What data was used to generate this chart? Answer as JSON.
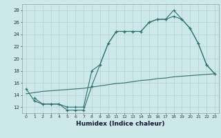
{
  "title": "",
  "xlabel": "Humidex (Indice chaleur)",
  "xlim": [
    -0.5,
    23.5
  ],
  "ylim": [
    11,
    29
  ],
  "yticks": [
    12,
    14,
    16,
    18,
    20,
    22,
    24,
    26,
    28
  ],
  "xticks": [
    0,
    1,
    2,
    3,
    4,
    5,
    6,
    7,
    8,
    9,
    10,
    11,
    12,
    13,
    14,
    15,
    16,
    17,
    18,
    19,
    20,
    21,
    22,
    23
  ],
  "bg_color": "#cce8e8",
  "line_color": "#2d7070",
  "grid_color": "#b8d4d4",
  "line1_x": [
    0,
    1,
    2,
    3,
    4,
    5,
    6,
    7,
    8,
    9,
    10,
    11,
    12,
    13,
    14,
    15,
    16,
    17,
    18,
    19,
    20,
    21,
    22,
    23
  ],
  "line1_y": [
    15.0,
    13.0,
    12.5,
    12.5,
    12.5,
    11.5,
    11.5,
    11.5,
    15.5,
    19.0,
    22.5,
    24.5,
    24.5,
    24.5,
    24.5,
    26.0,
    26.5,
    26.5,
    28.0,
    26.5,
    25.0,
    22.5,
    19.0,
    17.5
  ],
  "line2_x": [
    0,
    1,
    2,
    3,
    4,
    5,
    6,
    7,
    8,
    9,
    10,
    11,
    12,
    13,
    14,
    15,
    16,
    17,
    18,
    19,
    20,
    21,
    22,
    23
  ],
  "line2_y": [
    14.2,
    14.4,
    14.6,
    14.7,
    14.8,
    14.9,
    15.0,
    15.1,
    15.3,
    15.5,
    15.7,
    15.9,
    16.0,
    16.2,
    16.4,
    16.5,
    16.7,
    16.8,
    17.0,
    17.1,
    17.2,
    17.3,
    17.4,
    17.5
  ],
  "line3_x": [
    1,
    2,
    3,
    4,
    5,
    6,
    7,
    8,
    9,
    10,
    11,
    12,
    13,
    14,
    15,
    16,
    17,
    18,
    19,
    20,
    21,
    22,
    23
  ],
  "line3_y": [
    13.5,
    12.5,
    12.5,
    12.5,
    12.0,
    12.0,
    12.0,
    18.0,
    19.0,
    22.5,
    24.5,
    24.5,
    24.5,
    24.5,
    26.0,
    26.5,
    26.5,
    27.0,
    26.5,
    25.0,
    22.5,
    19.0,
    17.5
  ]
}
